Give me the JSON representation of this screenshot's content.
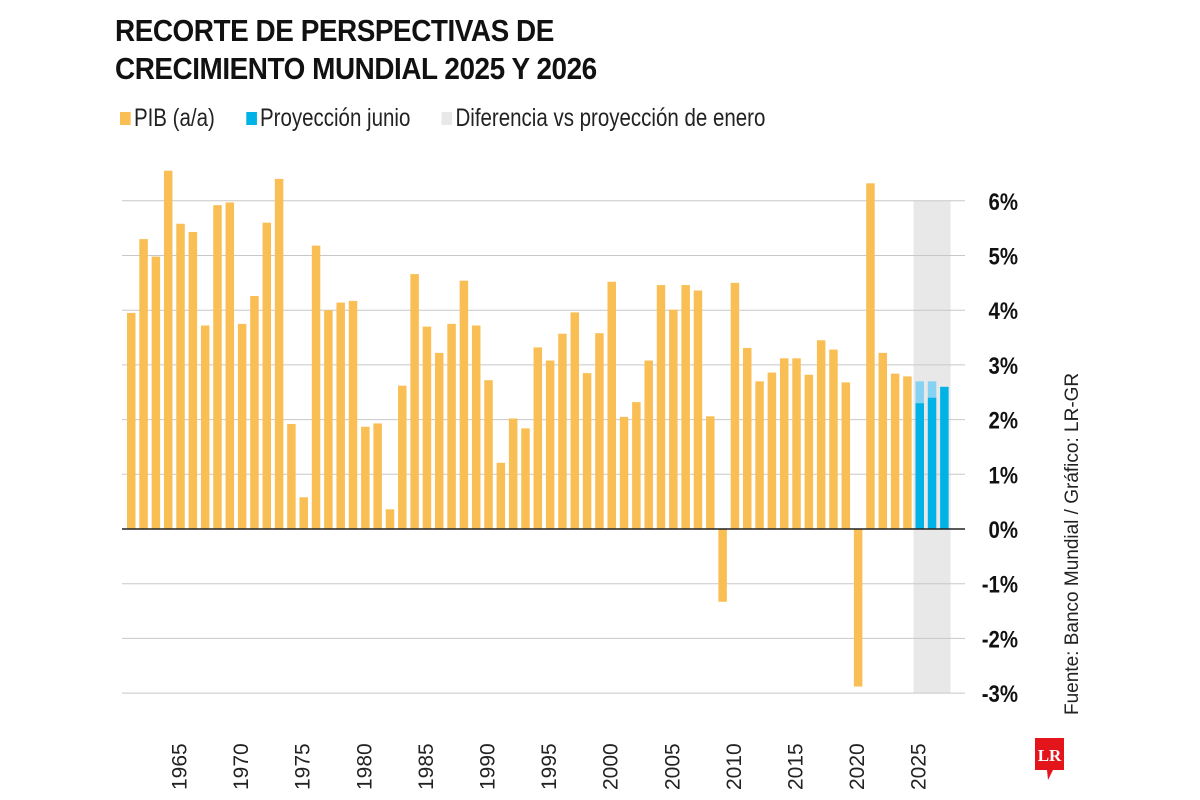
{
  "chart_data": {
    "type": "bar",
    "title_lines": [
      "RECORTE DE PERSPECTIVAS DE",
      "CRECIMIENTO MUNDIAL 2025 Y 2026"
    ],
    "legend": [
      {
        "label": "PIB (a/a)",
        "color": "#F9BF55"
      },
      {
        "label": "Proyección junio",
        "color": "#00B2E5"
      },
      {
        "label": "Diferencia vs proyección de enero",
        "color": "#E8E8E8"
      }
    ],
    "ylim": [
      -3,
      6
    ],
    "yticks": [
      6,
      5,
      4,
      3,
      2,
      1,
      0,
      -1,
      -2,
      -3
    ],
    "ytick_labels": [
      "6%",
      "5%",
      "4%",
      "3%",
      "2%",
      "1%",
      "0%",
      "-1%",
      "-2%",
      "-3%"
    ],
    "xtick_labels": [
      "1965",
      "1970",
      "1975",
      "1980",
      "1985",
      "1990",
      "1995",
      "2000",
      "2005",
      "2010",
      "2015",
      "2020",
      "2025"
    ],
    "years": [
      1961,
      1962,
      1963,
      1964,
      1965,
      1966,
      1967,
      1968,
      1969,
      1970,
      1971,
      1972,
      1973,
      1974,
      1975,
      1976,
      1977,
      1978,
      1979,
      1980,
      1981,
      1982,
      1983,
      1984,
      1985,
      1986,
      1987,
      1988,
      1989,
      1990,
      1991,
      1992,
      1993,
      1994,
      1995,
      1996,
      1997,
      1998,
      1999,
      2000,
      2001,
      2002,
      2003,
      2004,
      2005,
      2006,
      2007,
      2008,
      2009,
      2010,
      2011,
      2012,
      2013,
      2014,
      2015,
      2016,
      2017,
      2018,
      2019,
      2020,
      2021,
      2022,
      2023,
      2024
    ],
    "gdp": [
      3.95,
      5.3,
      4.98,
      6.55,
      5.58,
      5.43,
      3.72,
      5.92,
      5.97,
      3.75,
      4.26,
      5.6,
      6.4,
      1.92,
      0.58,
      5.18,
      4.0,
      4.14,
      4.17,
      1.87,
      1.93,
      0.36,
      2.62,
      4.66,
      3.7,
      3.22,
      3.75,
      4.54,
      3.72,
      2.72,
      1.21,
      2.02,
      1.84,
      3.32,
      3.08,
      3.57,
      3.96,
      2.85,
      3.58,
      4.52,
      2.05,
      2.32,
      3.08,
      4.46,
      4.01,
      4.46,
      4.36,
      2.06,
      -1.33,
      4.5,
      3.31,
      2.7,
      2.86,
      3.12,
      3.12,
      2.82,
      3.45,
      3.28,
      2.68,
      -2.88,
      6.32,
      3.22,
      2.84,
      2.79
    ],
    "projection_years": [
      2025,
      2026,
      2027
    ],
    "projection_june": [
      2.3,
      2.4,
      2.6
    ],
    "projection_january": [
      2.7,
      2.7,
      2.6
    ],
    "highlight_range": [
      2025,
      2027
    ],
    "source": "Fuente: Banco Mundial / Gráfico: LR-GR",
    "colors": {
      "gdp": "#F9BF55",
      "june": "#00B2E5",
      "diff": "#86D2F2",
      "band": "#E8E8E8",
      "grid": "#C8C8C8",
      "zero": "#222222"
    }
  },
  "logo_text": "LR"
}
